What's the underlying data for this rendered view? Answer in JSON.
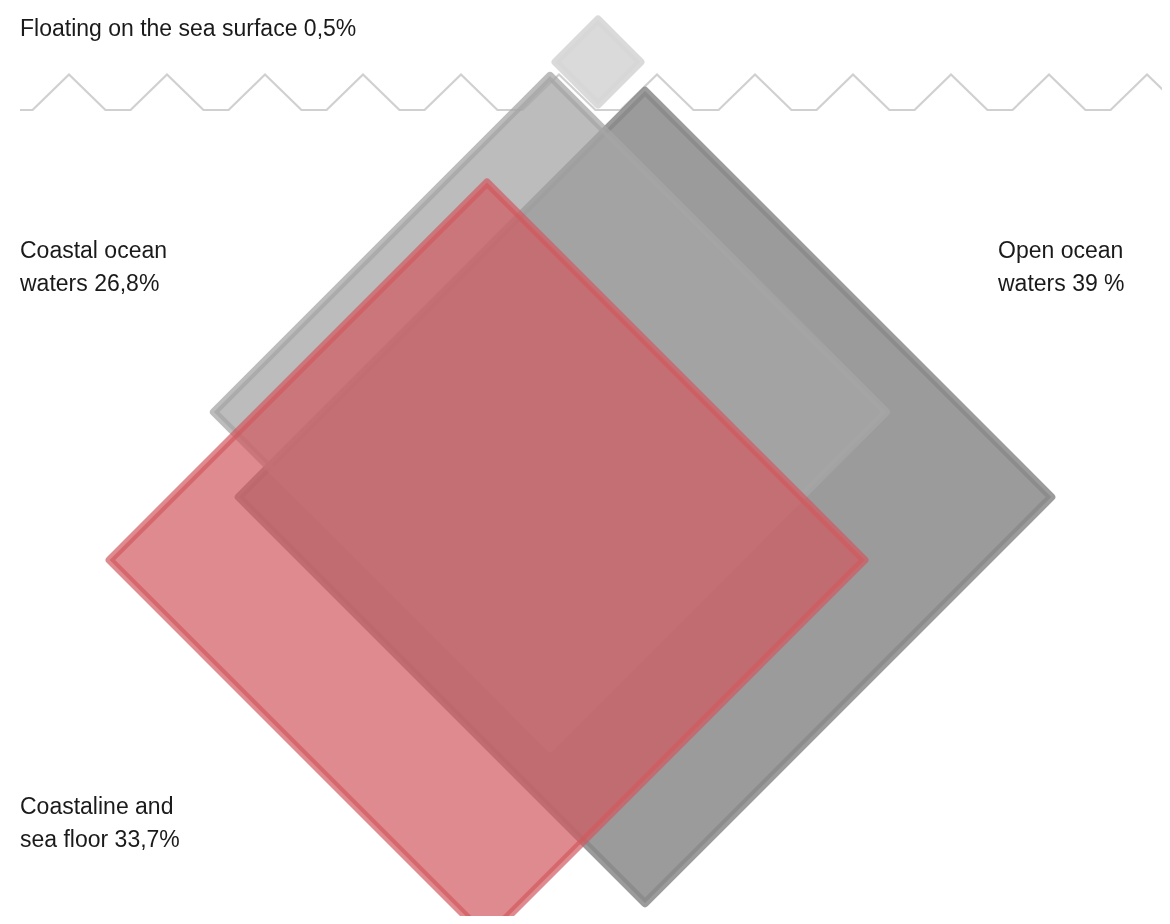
{
  "chart_data": {
    "type": "other",
    "categories": [
      "Floating on the sea surface",
      "Coastal ocean waters",
      "Open ocean waters",
      "Coastaline and sea floor"
    ],
    "values": [
      0.5,
      26.8,
      39,
      33.7
    ],
    "value_labels": [
      "0,5%",
      "26,8%",
      "39 %",
      "33,7%"
    ],
    "colors": [
      "#d6d6d6",
      "#a6a6a6",
      "#8a8a8a",
      "#d2585e"
    ]
  }
}
